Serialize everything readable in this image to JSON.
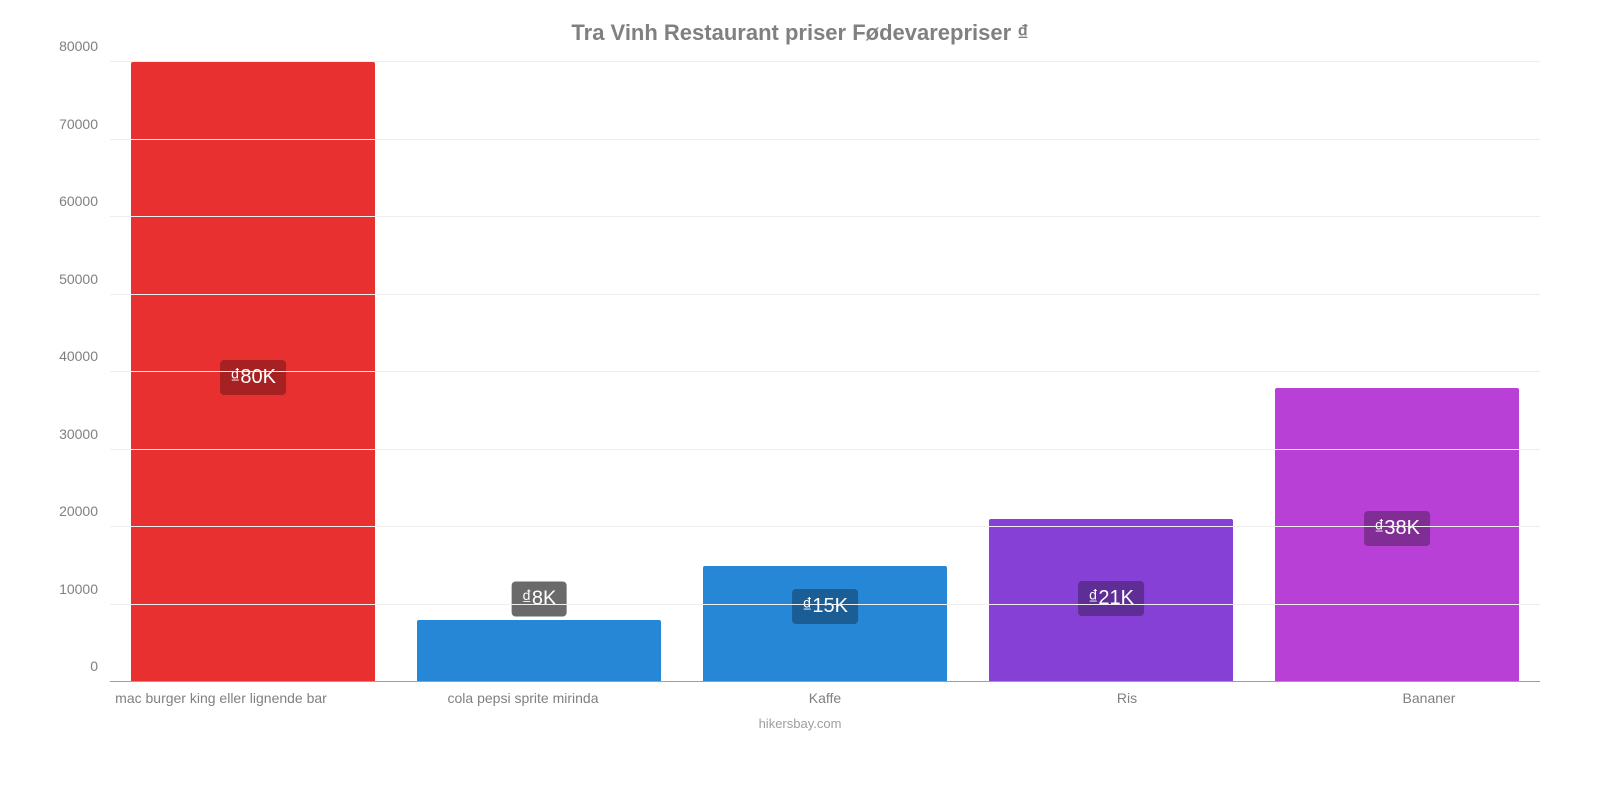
{
  "chart": {
    "type": "bar",
    "title": "Tra Vinh Restaurant priser Fødevarepriser ₫",
    "title_fontsize": 22,
    "title_color": "#808080",
    "background_color": "#ffffff",
    "grid_color": "#eeeeee",
    "axis_color": "#9e9e9e",
    "tick_label_color": "#808080",
    "tick_label_fontsize": 14,
    "x_label_fontsize": 14,
    "ymin": 0,
    "ymax": 80000,
    "ytick_step": 10000,
    "yticks": [
      0,
      10000,
      20000,
      30000,
      40000,
      50000,
      60000,
      70000,
      80000
    ],
    "bar_width_pct": 85,
    "bars": [
      {
        "category": "mac burger king eller lignende bar",
        "value": 80000,
        "value_label": "₫80K",
        "bar_color": "#e83030",
        "badge_bg": "#a62121",
        "badge_text_color": "#ffffff",
        "badge_fontsize": 20,
        "badge_from_top_pct": 48
      },
      {
        "category": "cola pepsi sprite mirinda",
        "value": 8000,
        "value_label": "₫8K",
        "bar_color": "#2587d6",
        "badge_bg": "#6a6a6a",
        "badge_text_color": "#ffffff",
        "badge_fontsize": 20,
        "badge_from_top_pct": -5
      },
      {
        "category": "Kaffe",
        "value": 15000,
        "value_label": "₫15K",
        "bar_color": "#2587d6",
        "badge_bg": "#1a5e95",
        "badge_text_color": "#ffffff",
        "badge_fontsize": 20,
        "badge_from_top_pct": 20
      },
      {
        "category": "Ris",
        "value": 21000,
        "value_label": "₫21K",
        "bar_color": "#8640d6",
        "badge_bg": "#5e2d95",
        "badge_text_color": "#ffffff",
        "badge_fontsize": 20,
        "badge_from_top_pct": 38
      },
      {
        "category": "Bananer",
        "value": 38000,
        "value_label": "₫38K",
        "bar_color": "#b840d6",
        "badge_bg": "#802d95",
        "badge_text_color": "#ffffff",
        "badge_fontsize": 20,
        "badge_from_top_pct": 42
      }
    ],
    "source_text": "hikersbay.com",
    "source_fontsize": 13,
    "source_color": "#9e9e9e"
  }
}
